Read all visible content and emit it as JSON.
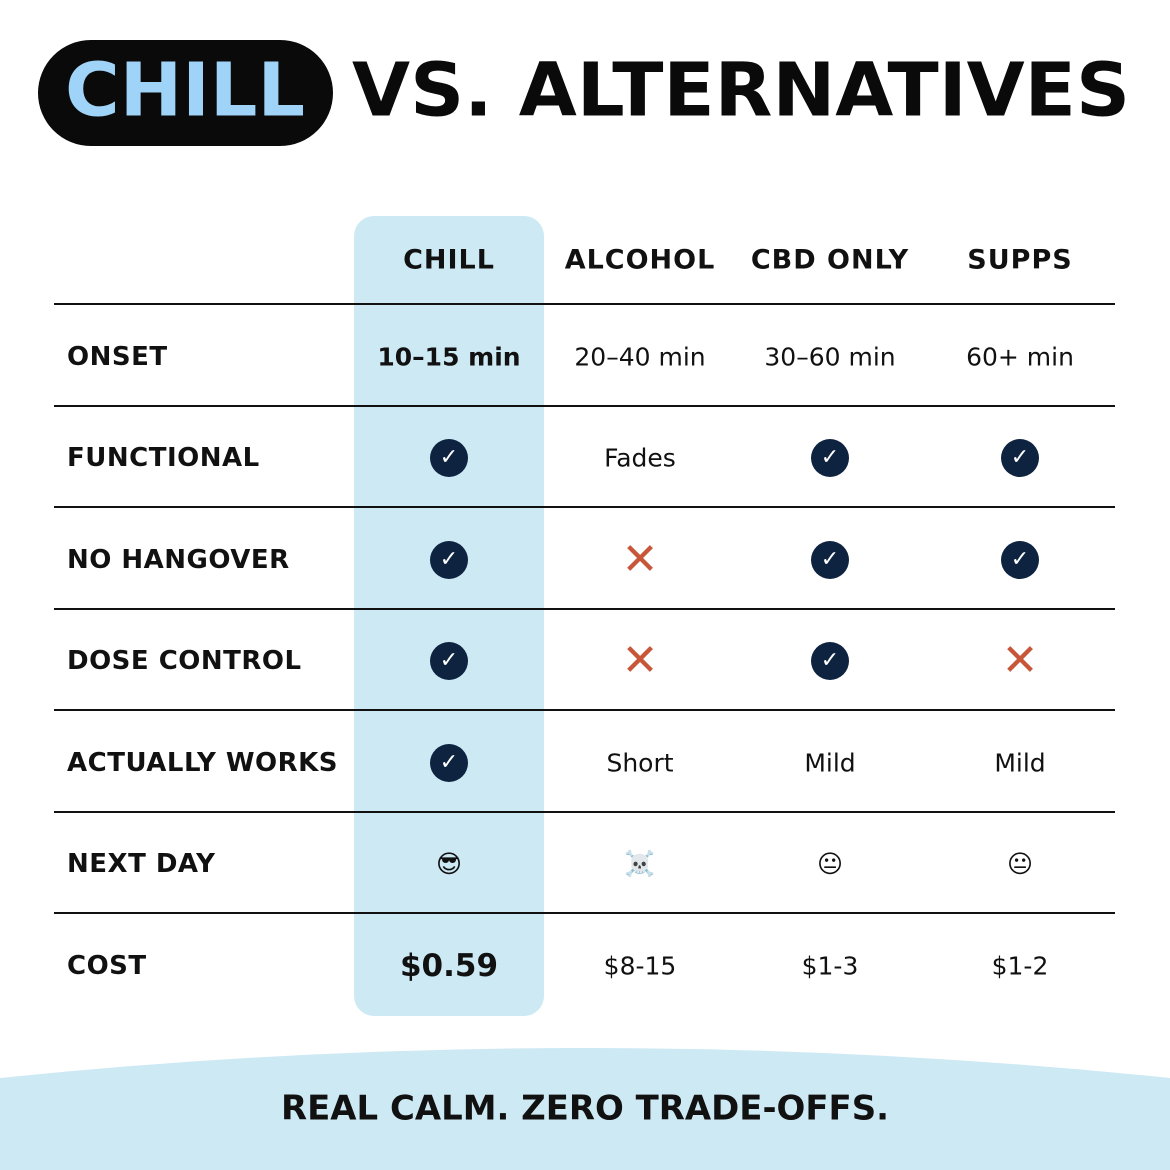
{
  "header": {
    "title_highlight": "CHILL",
    "title_rest": "VS. ALTERNATIVES"
  },
  "table": {
    "columns": [
      "CHILL",
      "ALCOHOL",
      "CBD ONLY",
      "SUPPS"
    ],
    "symbols": {
      "✓": {
        "color": "#0e2340",
        "badge": true
      },
      "✕": {
        "color": "#c8573a",
        "badge": false
      }
    },
    "rows": [
      {
        "label": "ONSET",
        "cells": [
          "10–15 min",
          "20–40 min",
          "30–60 min",
          "60+ min"
        ]
      },
      {
        "label": "FUNCTIONAL",
        "cells": [
          "✓",
          "Fades",
          "✓",
          "✓"
        ]
      },
      {
        "label": "NO HANGOVER",
        "cells": [
          "✓",
          "✕",
          "✓",
          "✓"
        ]
      },
      {
        "label": "DOSE CONTROL",
        "cells": [
          "✓",
          "✕",
          "✓",
          "✕"
        ]
      },
      {
        "label": "ACTUALLY WORKS",
        "cells": [
          "✓",
          "Short",
          "Mild",
          "Mild"
        ]
      },
      {
        "label": "NEXT DAY",
        "cells": [
          "😎",
          "☠️",
          "😐",
          "😐"
        ]
      },
      {
        "label": "COST",
        "cells": [
          "$0.59",
          "$8-15",
          "$1-3",
          "$1-2"
        ]
      }
    ]
  },
  "footer": {
    "tagline": "REAL CALM. ZERO TRADE-OFFS."
  }
}
